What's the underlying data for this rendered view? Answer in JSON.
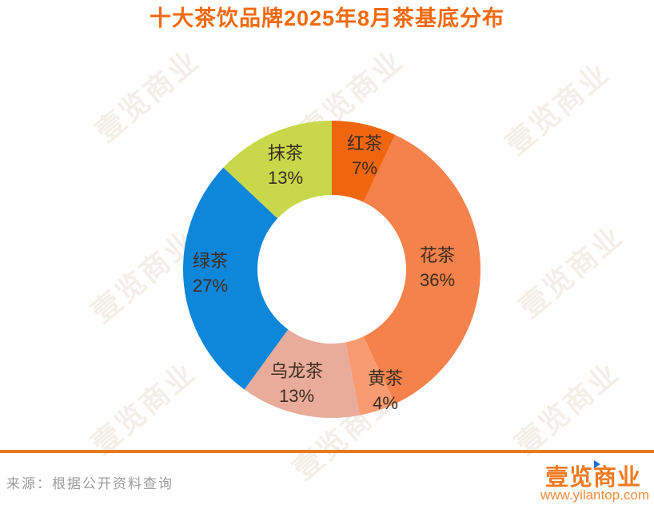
{
  "title": "十大茶饮品牌2025年8月茶基底分布",
  "source_note": "来源：根据公开资料查询",
  "watermark_text": "壹览商业",
  "footer": {
    "logo_text": "壹览商业",
    "website": "www.yilantop.com"
  },
  "colors": {
    "title": "#F2690E",
    "divider": "#E97A1E",
    "segment_label_text": "#3D2C20",
    "source_text": "#9B9B9B",
    "logo_orange": "#F07A21",
    "website_orange": "#F08A3C",
    "logo_arrow_blue": "#1D6FD2",
    "background": "#FFFFFF"
  },
  "chart_data": {
    "type": "pie",
    "subtype": "donut",
    "title": "十大茶饮品牌2025年8月茶基底分布",
    "unit": "%",
    "start_angle_deg": 0,
    "direction": "clockwise",
    "inner_radius_ratio": 0.5,
    "categories": [
      "红茶",
      "花茶",
      "黄茶",
      "乌龙茶",
      "绿茶",
      "抹茶"
    ],
    "values": [
      7,
      36,
      4,
      13,
      27,
      13
    ],
    "segments": [
      {
        "label": "红茶",
        "value": 7,
        "display": "7%",
        "color": "#F0660F"
      },
      {
        "label": "花茶",
        "value": 36,
        "display": "36%",
        "color": "#F5814B"
      },
      {
        "label": "黄茶",
        "value": 4,
        "display": "4%",
        "color": "#F99B72"
      },
      {
        "label": "乌龙茶",
        "value": 13,
        "display": "13%",
        "color": "#E9AC9A"
      },
      {
        "label": "绿茶",
        "value": 27,
        "display": "27%",
        "color": "#0E86D9"
      },
      {
        "label": "抹茶",
        "value": 13,
        "display": "13%",
        "color": "#C8D84A"
      }
    ]
  }
}
